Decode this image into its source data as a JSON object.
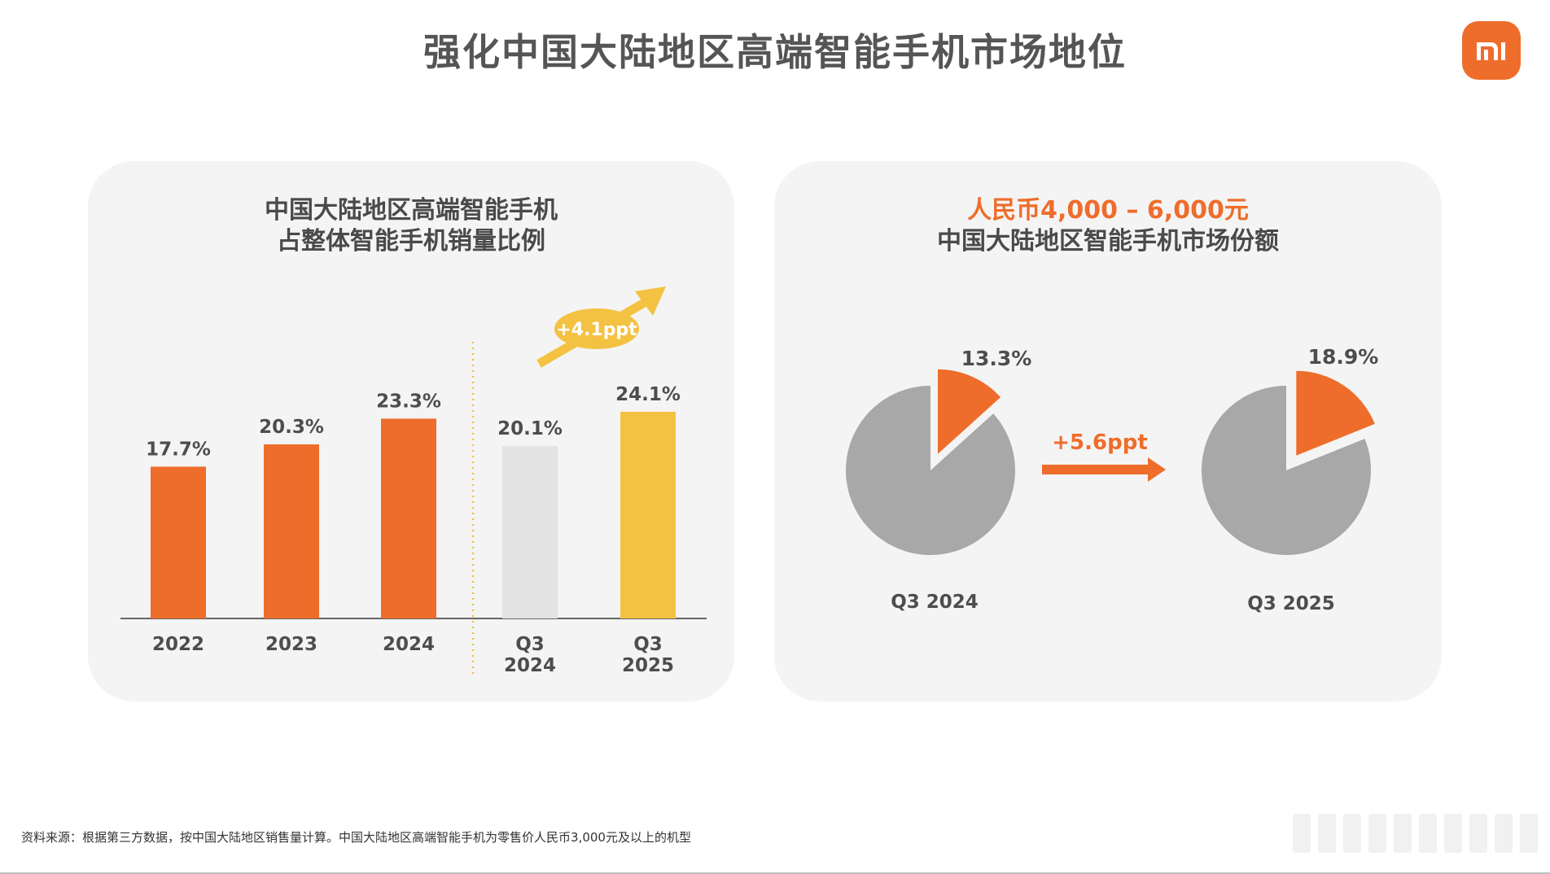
{
  "page": {
    "title": "强化中国大陆地区高端智能手机市场地位",
    "footnote": "资料来源：根据第三方数据，按中国大陆地区销售量计算。中国大陆地区高端智能手机为零售价人民币3,000元及以上的机型"
  },
  "logo": {
    "text": "mi",
    "color": "#ee6d2b"
  },
  "left_panel": {
    "title_line1": "中国大陆地区高端智能手机",
    "title_line2": "占整体智能手机销量比例"
  },
  "right_panel": {
    "title_line1": "人民币4,000 – 6,000元",
    "title_line2": "中国大陆地区智能手机市场份额"
  },
  "colors": {
    "orange": "#ee6d2b",
    "yellow": "#f4c242",
    "light_gray": "#e3e3e3",
    "pie_gray": "#a8a8a8",
    "divider": "#f2c23a"
  },
  "chart_data": [
    {
      "type": "bar",
      "categories": [
        "2022",
        "2023",
        "2024",
        "Q3 2024",
        "Q3 2025"
      ],
      "values": [
        17.7,
        20.3,
        23.3,
        20.1,
        24.1
      ],
      "data_labels": [
        "17.7%",
        "20.3%",
        "23.3%",
        "20.1%",
        "24.1%"
      ],
      "bar_colors": [
        "#ee6d2b",
        "#ee6d2b",
        "#ee6d2b",
        "#e3e3e3",
        "#f4c242"
      ],
      "ylim": [
        0,
        24.1
      ],
      "grid": false,
      "annotation": "+4.1ppt"
    },
    {
      "type": "pie",
      "pies": [
        {
          "label": "Q3 2024",
          "value": 13.3,
          "value_label": "13.3%"
        },
        {
          "label": "Q3 2025",
          "value": 18.9,
          "value_label": "18.9%"
        }
      ],
      "annotation": "+5.6ppt"
    }
  ]
}
